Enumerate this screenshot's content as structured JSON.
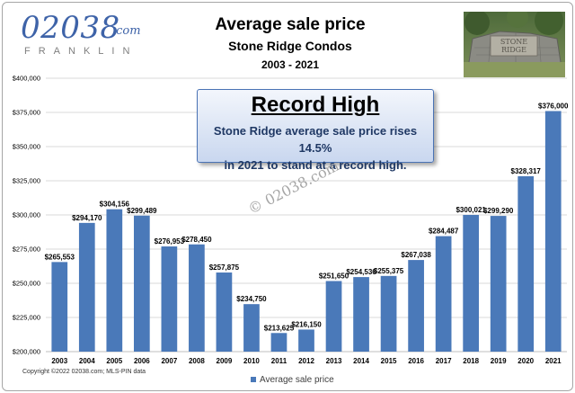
{
  "logo": {
    "main": "02038",
    "suffix": ".com",
    "sub": "FRANKLIN"
  },
  "photo": {
    "sign_line1": "STONE",
    "sign_line2": "RIDGE"
  },
  "callout": {
    "title": "Record High",
    "line1": "Stone Ridge average sale price rises 14.5%",
    "line2": "in 2021 to stand at a record high."
  },
  "watermark": "© 02038.com",
  "copyright": "Copyright ©2022 02038.com; MLS-PIN data",
  "colors": {
    "bar": "#4a79b9",
    "gridline": "#d9d9d9",
    "callout_border": "#4a73b5"
  },
  "chart_data": {
    "type": "bar",
    "title": "Average sale price",
    "subtitle": "Stone Ridge Condos",
    "years_label": "2003 - 2021",
    "categories": [
      "2003",
      "2004",
      "2005",
      "2006",
      "2007",
      "2008",
      "2009",
      "2010",
      "2011",
      "2012",
      "2013",
      "2014",
      "2015",
      "2016",
      "2017",
      "2018",
      "2019",
      "2020",
      "2021"
    ],
    "series": [
      {
        "name": "Average sale price",
        "values": [
          265553,
          294170,
          304156,
          299489,
          276953,
          278450,
          257875,
          234750,
          213625,
          216150,
          251650,
          254536,
          255375,
          267038,
          284487,
          300021,
          299290,
          328317,
          376000
        ],
        "labels": [
          "$265,553",
          "$294,170",
          "$304,156",
          "$299,489",
          "$276,953",
          "$278,450",
          "$257,875",
          "$234,750",
          "$213,625",
          "$216,150",
          "$251,650",
          "$254,536",
          "$255,375",
          "$267,038",
          "$284,487",
          "$300,021",
          "$299,290",
          "$328,317",
          "$376,000"
        ]
      }
    ],
    "ylim": [
      200000,
      400000
    ],
    "yticks": [
      200000,
      225000,
      250000,
      275000,
      300000,
      325000,
      350000,
      375000,
      400000
    ],
    "ytick_labels": [
      "$200,000",
      "$225,000",
      "$250,000",
      "$275,000",
      "$300,000",
      "$325,000",
      "$350,000",
      "$375,000",
      "$400,000"
    ],
    "grid": true,
    "legend": "bottom"
  }
}
